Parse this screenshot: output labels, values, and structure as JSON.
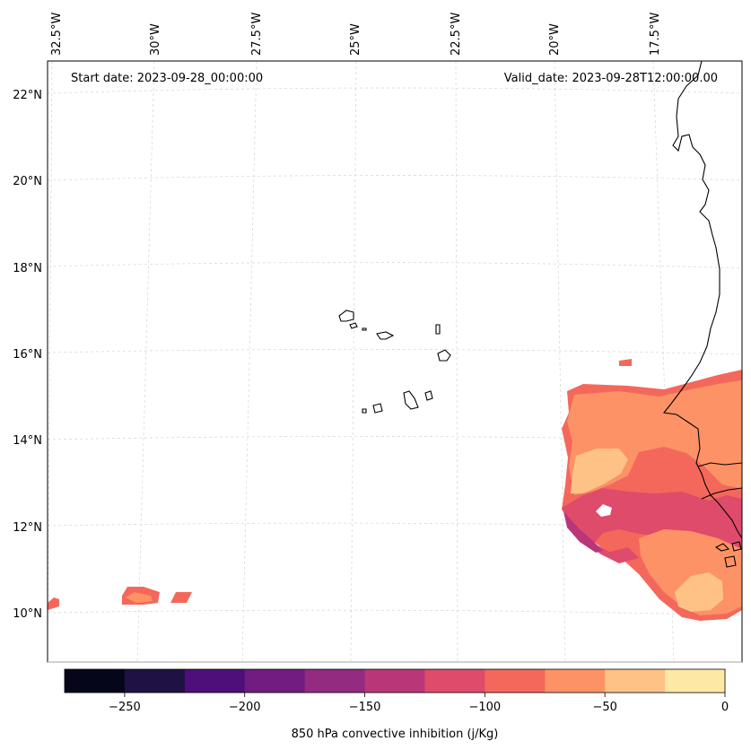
{
  "header": {
    "start_date": "Start date: 2023-09-28_00:00:00",
    "valid_date": "Valid_date: 2023-09-28T12:00:00.00"
  },
  "map": {
    "lon_labels": [
      "32.5°W",
      "30°W",
      "27.5°W",
      "25°W",
      "22.5°W",
      "20°W",
      "17.5°W"
    ],
    "lat_labels": [
      "22°N",
      "20°N",
      "18°N",
      "16°N",
      "14°N",
      "12°N",
      "10°N"
    ],
    "gridlines": true
  },
  "colorbar": {
    "label": "850 hPa convective inhibition (j/Kg)",
    "ticks": [
      "−250",
      "−200",
      "−150",
      "−100",
      "−50",
      "0"
    ],
    "range": [
      -275,
      0
    ],
    "colors": [
      "#05061a",
      "#1f1143",
      "#4e0f7b",
      "#721c81",
      "#932b80",
      "#b93779",
      "#df4b6b",
      "#f4685c",
      "#fc9265",
      "#fec287",
      "#fde9a5"
    ]
  }
}
